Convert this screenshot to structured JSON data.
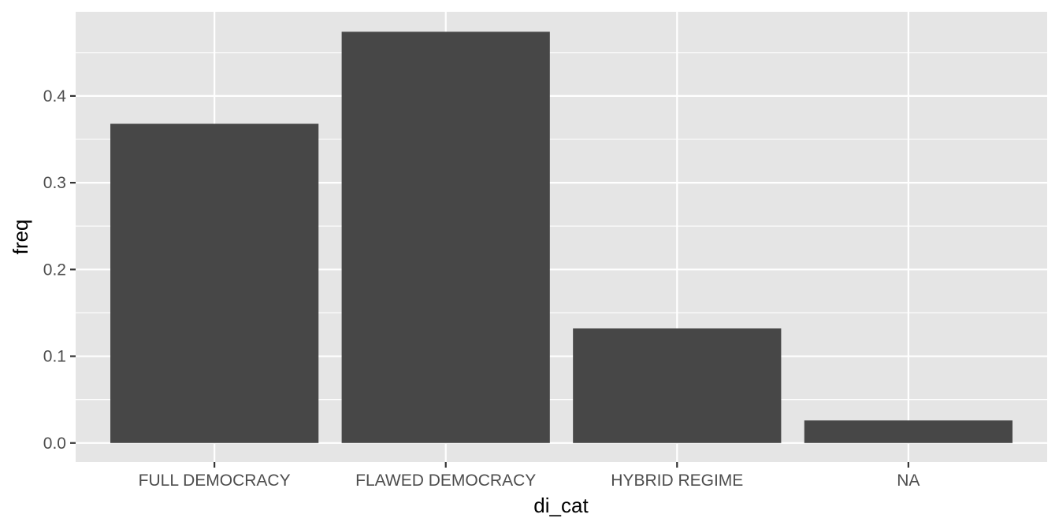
{
  "chart_data": {
    "type": "bar",
    "title": "",
    "xlabel": "di_cat",
    "ylabel": "freq",
    "categories": [
      "FULL DEMOCRACY",
      "FLAWED DEMOCRACY",
      "HYBRID REGIME",
      "NA"
    ],
    "values": [
      0.368,
      0.474,
      0.132,
      0.026
    ],
    "ylim": [
      -0.022,
      0.497
    ],
    "yticks": [
      0.0,
      0.1,
      0.2,
      0.3,
      0.4
    ],
    "ytick_labels": [
      "0.0",
      "0.1",
      "0.2",
      "0.3",
      "0.4"
    ],
    "grid": true,
    "legend": "none",
    "colors": {
      "bar": "#474747",
      "panel": "#e5e5e5",
      "grid": "#ffffff",
      "tick": "#4d4d4d"
    }
  }
}
